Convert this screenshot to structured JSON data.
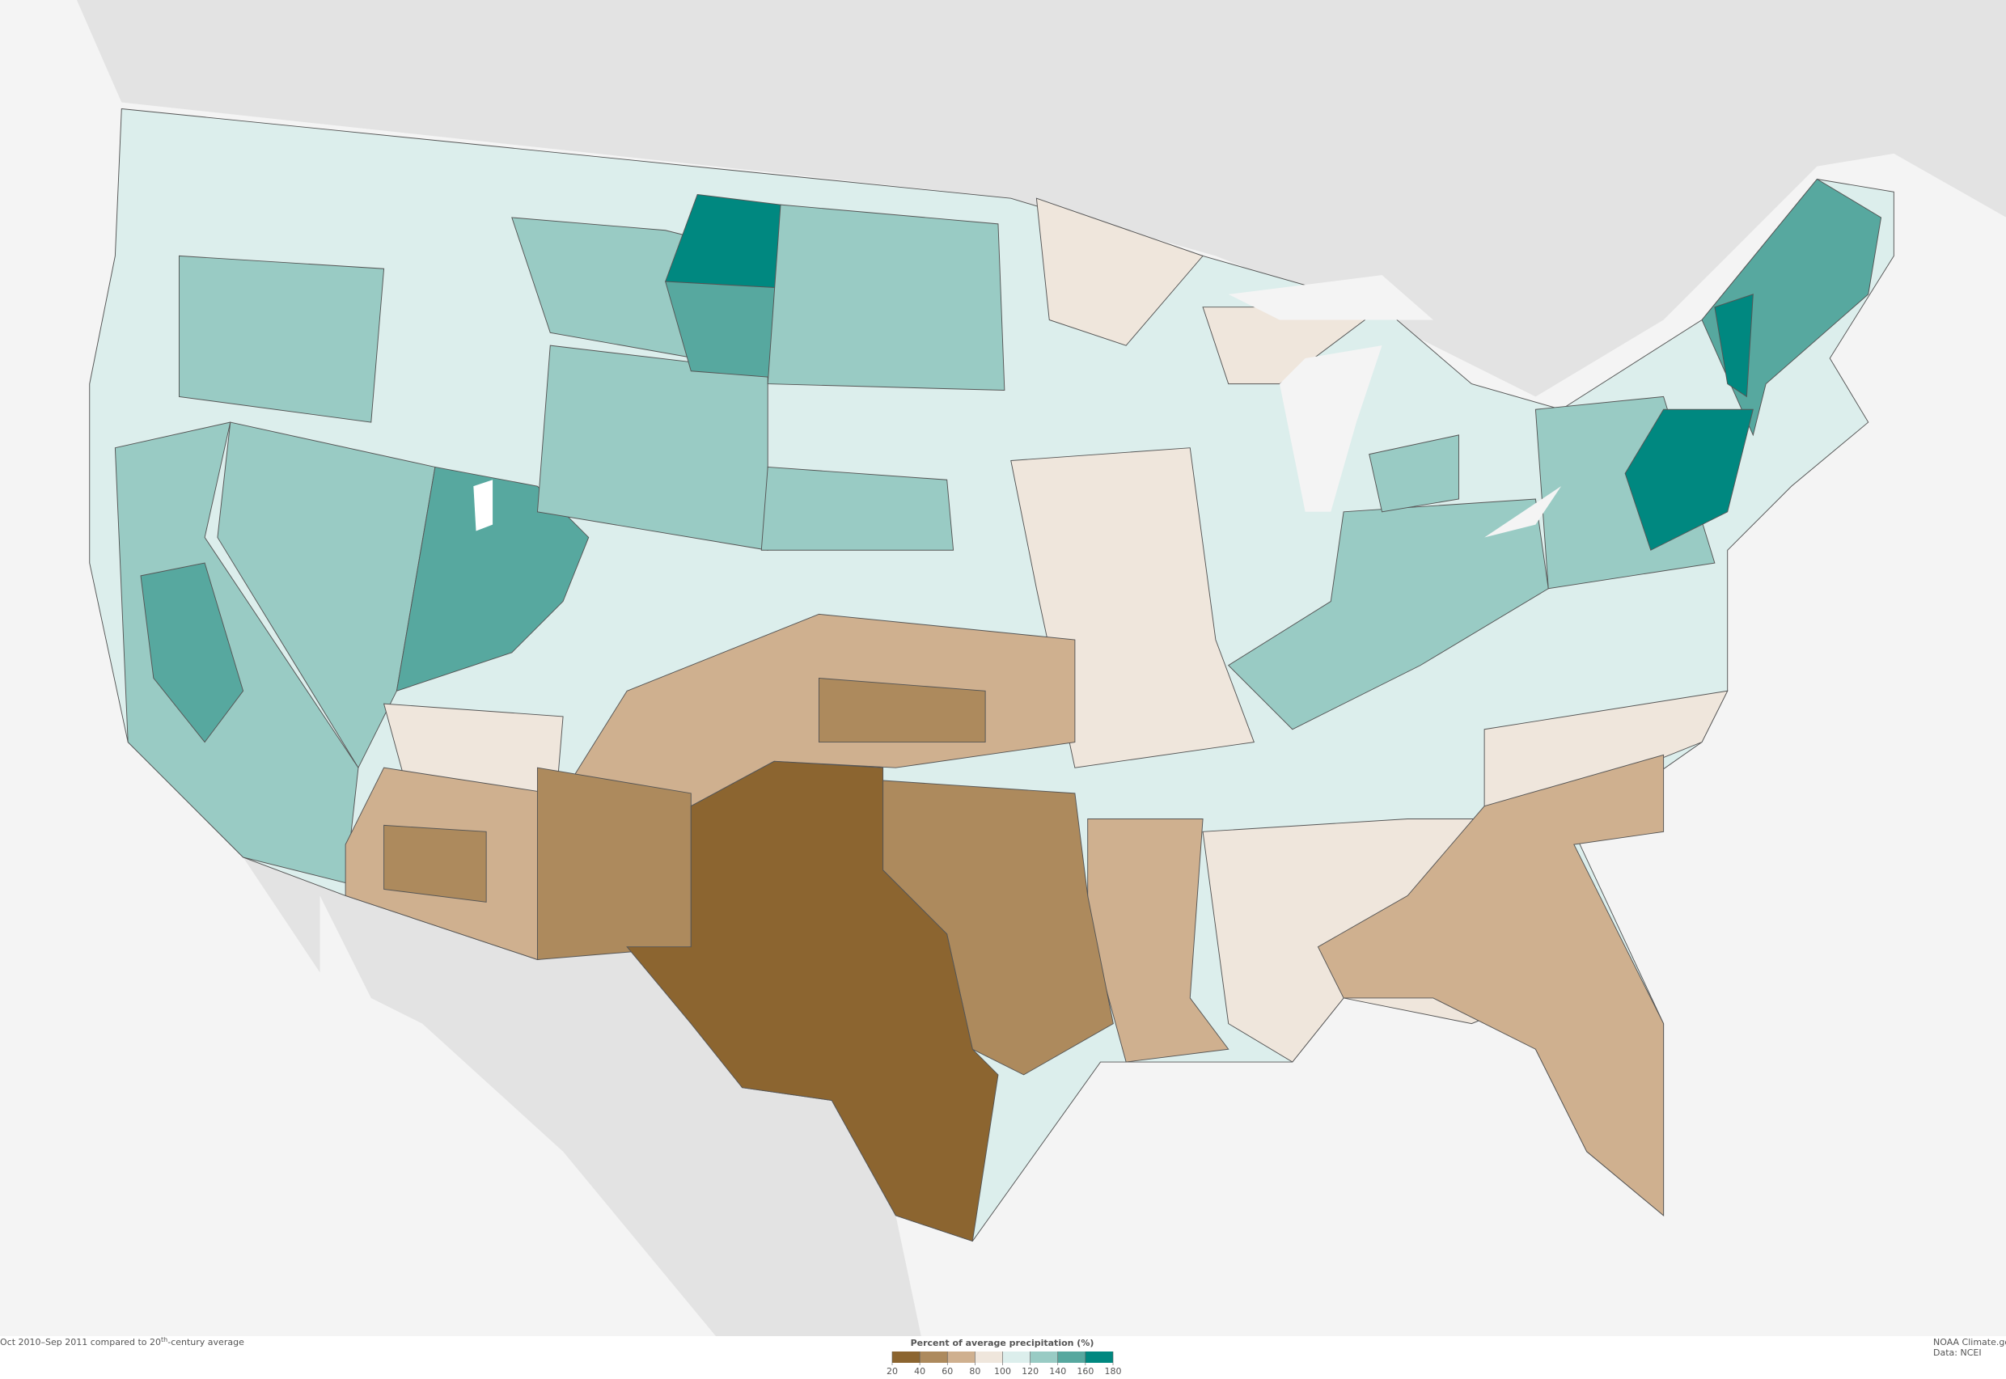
{
  "caption": {
    "text": "Oct 2010–Sep 2011 compared to 20",
    "sup": "th",
    "rest": "-century average"
  },
  "legend": {
    "title": "Percent of average precipitation (%)",
    "ticks": [
      20,
      40,
      60,
      80,
      100,
      120,
      140,
      160,
      180
    ],
    "colors": [
      "#8c6530",
      "#ad8a5d",
      "#cfb08f",
      "#efe6dc",
      "#dceeec",
      "#99cbc4",
      "#57a89f",
      "#008880"
    ]
  },
  "credit": {
    "line1": "NOAA Climate.gov",
    "line2": "Data: NCEI"
  }
}
